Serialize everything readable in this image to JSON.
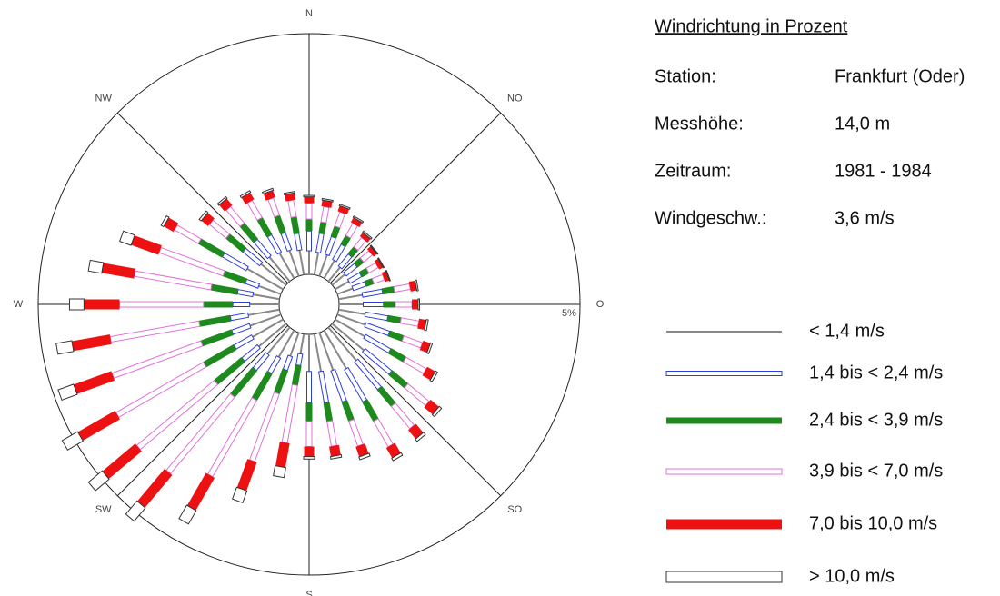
{
  "chart_data": {
    "type": "windrose",
    "x": [
      0,
      10,
      20,
      30,
      40,
      50,
      60,
      70,
      80,
      90,
      100,
      110,
      120,
      130,
      140,
      150,
      160,
      170,
      180,
      190,
      200,
      210,
      220,
      230,
      240,
      250,
      260,
      270,
      280,
      290,
      300,
      310,
      320,
      330,
      340,
      350
    ],
    "compass_labels": [
      "N",
      "NO",
      "O",
      "SO",
      "S",
      "SW",
      "W",
      "NW"
    ],
    "rlim": [
      0,
      5
    ],
    "rticks": [
      {
        "value": 5,
        "label": "5%"
      }
    ],
    "series": [
      {
        "name": "< 1,4 m/s",
        "color": "#888888",
        "values": [
          0.49,
          0.47,
          0.47,
          0.43,
          0.38,
          0.35,
          0.33,
          0.34,
          0.5,
          0.5,
          0.56,
          0.62,
          0.71,
          0.86,
          0.9,
          0.92,
          0.83,
          0.79,
          0.77,
          0.42,
          0.52,
          0.64,
          0.72,
          0.74,
          0.73,
          0.68,
          0.66,
          0.61,
          0.56,
          0.49,
          0.86,
          0.68,
          0.66,
          0.61,
          0.57,
          0.52
        ]
      },
      {
        "name": "1,4 bis < 2,4 m/s",
        "color": "#2b3fd6",
        "values": [
          0.41,
          0.4,
          0.39,
          0.36,
          0.32,
          0.29,
          0.28,
          0.28,
          0.42,
          0.42,
          0.47,
          0.52,
          0.6,
          0.72,
          0.75,
          0.77,
          0.69,
          0.66,
          0.65,
          0.24,
          0.3,
          0.37,
          0.41,
          0.42,
          0.42,
          0.39,
          0.37,
          0.35,
          0.32,
          0.28,
          0.57,
          0.45,
          0.44,
          0.41,
          0.38,
          0.35
        ]
      },
      {
        "name": "2,4 bis < 3,9 m/s",
        "color": "#1e8a1e",
        "values": [
          0.25,
          0.24,
          0.23,
          0.21,
          0.19,
          0.17,
          0.17,
          0.17,
          0.25,
          0.25,
          0.28,
          0.31,
          0.36,
          0.43,
          0.45,
          0.46,
          0.42,
          0.39,
          0.39,
          0.42,
          0.52,
          0.64,
          0.72,
          0.74,
          0.73,
          0.68,
          0.66,
          0.61,
          0.56,
          0.49,
          0.57,
          0.45,
          0.44,
          0.41,
          0.38,
          0.35
        ]
      },
      {
        "name": "3,9 bis < 7,0 m/s",
        "color": "#e070d8",
        "values": [
          0.33,
          0.32,
          0.31,
          0.29,
          0.25,
          0.23,
          0.22,
          0.23,
          0.33,
          0.34,
          0.37,
          0.41,
          0.48,
          0.57,
          0.6,
          0.61,
          0.55,
          0.52,
          0.52,
          1.21,
          1.49,
          1.83,
          2.07,
          2.1,
          2.09,
          1.96,
          1.87,
          1.74,
          1.61,
          1.41,
          0.57,
          0.45,
          0.44,
          0.41,
          0.38,
          0.35
        ]
      },
      {
        "name": "7,0 bis 10,0 m/s",
        "color": "#ee1111",
        "values": [
          0.13,
          0.13,
          0.12,
          0.11,
          0.1,
          0.09,
          0.09,
          0.09,
          0.13,
          0.13,
          0.15,
          0.16,
          0.19,
          0.23,
          0.24,
          0.24,
          0.22,
          0.21,
          0.21,
          0.51,
          0.63,
          0.78,
          0.88,
          0.89,
          0.89,
          0.83,
          0.8,
          0.74,
          0.68,
          0.6,
          0.23,
          0.18,
          0.18,
          0.16,
          0.15,
          0.14
        ]
      },
      {
        "name": "> 10,0 m/s",
        "color": "#333333",
        "values": [
          0.03,
          0.03,
          0.03,
          0.03,
          0.03,
          0.02,
          0.02,
          0.02,
          0.03,
          0.03,
          0.04,
          0.04,
          0.05,
          0.06,
          0.06,
          0.06,
          0.06,
          0.05,
          0.05,
          0.21,
          0.26,
          0.32,
          0.36,
          0.37,
          0.37,
          0.34,
          0.33,
          0.3,
          0.28,
          0.25,
          0.06,
          0.05,
          0.04,
          0.04,
          0.04,
          0.03
        ]
      }
    ]
  },
  "info": {
    "title": "Windrichtung in Prozent",
    "rows": [
      [
        "Station:",
        "Frankfurt (Oder)"
      ],
      [
        "Messhöhe:",
        "14,0 m"
      ],
      [
        "Zeitraum:",
        "1981 - 1984"
      ],
      [
        "Windgeschw.:",
        "3,6 m/s"
      ]
    ]
  }
}
